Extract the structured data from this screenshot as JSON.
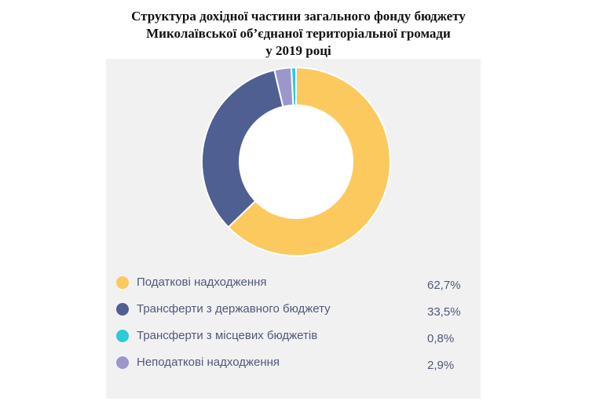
{
  "chart_data": {
    "type": "pie",
    "title_lines": [
      "Структура дохідної частини загального фонду бюджету",
      "Миколаївської об’єднаної територіальної громади",
      "у 2019 році"
    ],
    "categories": [
      "Податкові надходження",
      "Трансферти з державного бюджету",
      "Трансферти з місцевих бюджетів",
      "Неподаткові надходження"
    ],
    "values": [
      62.7,
      33.5,
      0.8,
      2.9
    ],
    "value_labels": [
      "62,7%",
      "33,5%",
      "0,8%",
      "2,9%"
    ],
    "colors": [
      "#fcc95e",
      "#4f5f92",
      "#29ccd7",
      "#9b97cd"
    ],
    "donut_order": [
      0,
      1,
      3,
      2
    ],
    "legend_placement": "bottom"
  }
}
